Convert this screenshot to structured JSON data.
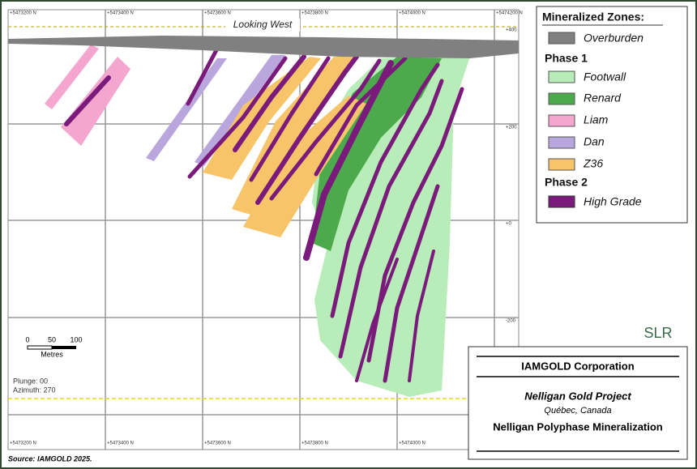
{
  "grid": {
    "top_labels": [
      "+5473200 N",
      "+5473400 N",
      "+5473600 N",
      "+5473800 N",
      "+5474000 N",
      "+5474200 N"
    ],
    "bottom_labels": [
      "+5473200 N",
      "+5473400 N",
      "+5473600 N",
      "+5473800 N",
      "+5474000 N"
    ],
    "right_labels": [
      "+400",
      "+200",
      "+0",
      "-200"
    ]
  },
  "view_label": "Looking West",
  "legend": {
    "title": "Mineralized Zones:",
    "overburden": "Overburden",
    "phase1": "Phase 1",
    "footwall": "Footwall",
    "renard": "Renard",
    "liam": "Liam",
    "dan": "Dan",
    "z36": "Z36",
    "phase2": "Phase 2",
    "high_grade": "High Grade"
  },
  "scale": {
    "labels": [
      "0",
      "50",
      "100"
    ],
    "unit": "Metres"
  },
  "orientation": {
    "plunge": "Plunge: 00",
    "azimuth": "Azimuth: 270"
  },
  "logo": "SLR",
  "title_block": {
    "company": "IAMGOLD Corporation",
    "project": "Nelligan Gold Project",
    "location": "Québec, Canada",
    "figure_title": "Nelligan Polyphase Mineralization"
  },
  "source": "Source: IAMGOLD 2025."
}
